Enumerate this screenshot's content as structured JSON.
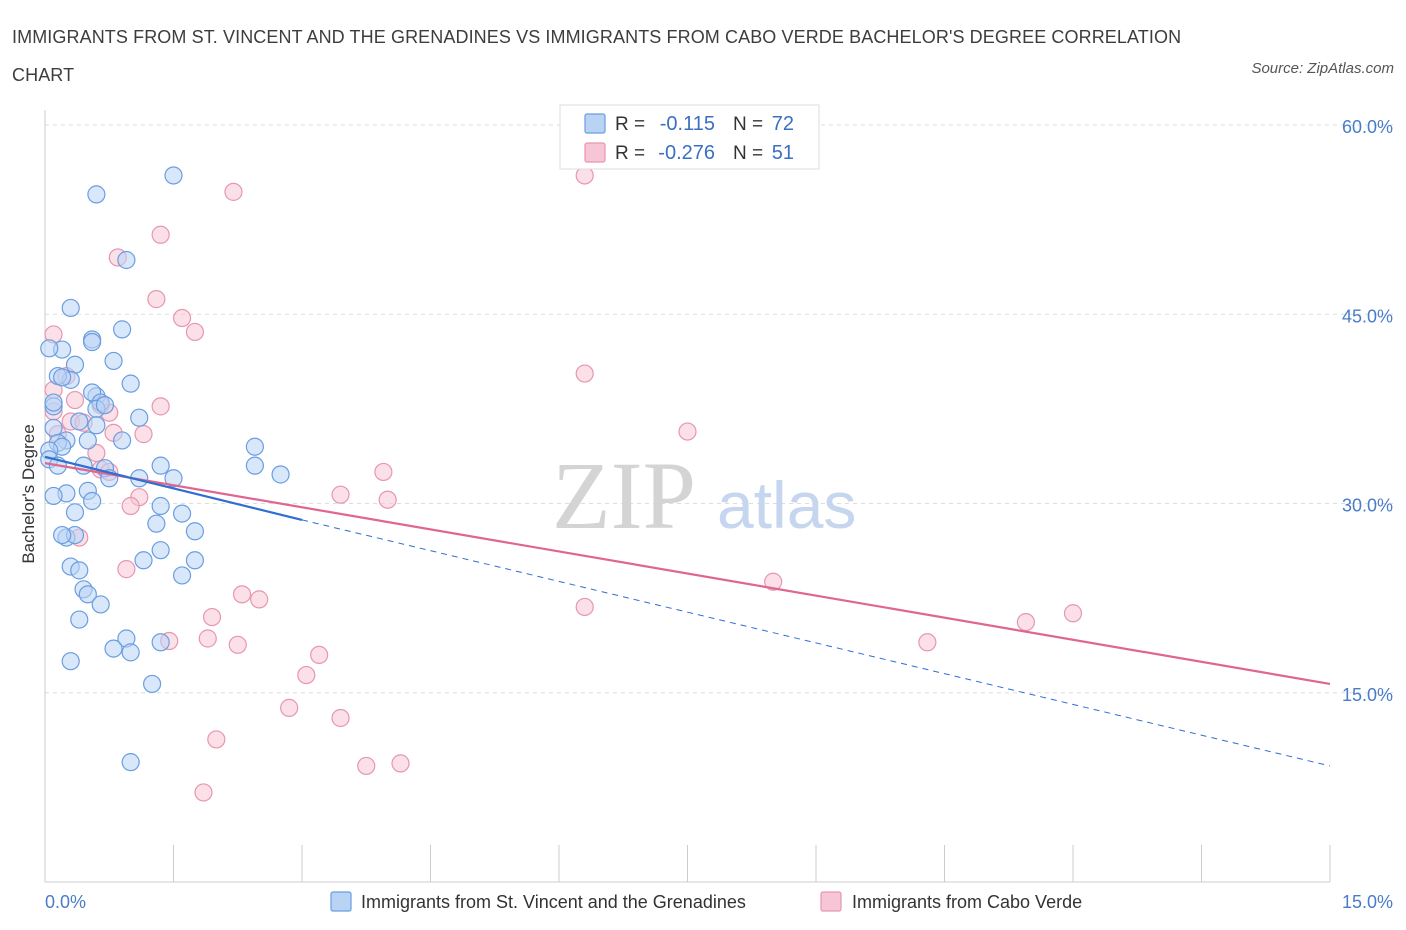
{
  "title": "IMMIGRANTS FROM ST. VINCENT AND THE GRENADINES VS IMMIGRANTS FROM CABO VERDE BACHELOR'S DEGREE CORRELATION CHART",
  "source": "Source: ZipAtlas.com",
  "watermark": {
    "part1": "ZIP",
    "part2": "atlas"
  },
  "colors": {
    "series1_fill": "#b9d3f5",
    "series1_stroke": "#6a9ee0",
    "series1_line": "#2f6fcf",
    "series2_fill": "#f7c6d6",
    "series2_stroke": "#e796b2",
    "series2_line": "#e06590",
    "tick_label": "#4a7cc9",
    "grid": "#dddddd"
  },
  "legend": {
    "r_label": "R =",
    "n_label": "N =",
    "series1": {
      "r": "-0.115",
      "n": "72"
    },
    "series2": {
      "r": "-0.276",
      "n": "51"
    }
  },
  "chart_data": {
    "type": "scatter",
    "xlabel": "",
    "ylabel": "Bachelor's Degree",
    "xlim": [
      0,
      15
    ],
    "ylim": [
      0,
      60
    ],
    "x_tick_labels": [
      "0.0%",
      "15.0%"
    ],
    "y_ticks": [
      15,
      30,
      45,
      60
    ],
    "y_tick_labels": [
      "15.0%",
      "30.0%",
      "45.0%",
      "60.0%"
    ],
    "grid": true,
    "legend_position": "top-center",
    "series": [
      {
        "name": "Immigrants from St. Vincent and the Grenadines",
        "trend": {
          "x": [
            0,
            3.0
          ],
          "y": [
            33.7,
            28.7
          ],
          "dashed_extension": {
            "x": [
              3.0,
              15.0
            ],
            "y": [
              28.7,
              9.2
            ]
          }
        },
        "points": [
          [
            0.6,
            54.5
          ],
          [
            1.5,
            56.0
          ],
          [
            0.3,
            45.5
          ],
          [
            0.55,
            43.0
          ],
          [
            0.9,
            43.8
          ],
          [
            0.55,
            42.8
          ],
          [
            0.2,
            42.2
          ],
          [
            0.05,
            42.3
          ],
          [
            0.35,
            41.0
          ],
          [
            0.8,
            41.3
          ],
          [
            1.0,
            39.5
          ],
          [
            0.3,
            39.8
          ],
          [
            0.15,
            40.1
          ],
          [
            0.6,
            38.5
          ],
          [
            0.55,
            38.8
          ],
          [
            0.65,
            38.0
          ],
          [
            0.1,
            37.7
          ],
          [
            0.6,
            37.5
          ],
          [
            1.1,
            36.8
          ],
          [
            0.1,
            36.0
          ],
          [
            0.6,
            36.2
          ],
          [
            0.25,
            35.0
          ],
          [
            0.15,
            34.8
          ],
          [
            0.2,
            34.5
          ],
          [
            0.05,
            34.2
          ],
          [
            0.05,
            33.5
          ],
          [
            0.15,
            33.0
          ],
          [
            0.45,
            33.0
          ],
          [
            0.7,
            32.8
          ],
          [
            1.35,
            33.0
          ],
          [
            0.75,
            32.0
          ],
          [
            1.1,
            32.0
          ],
          [
            1.5,
            32.0
          ],
          [
            0.25,
            30.8
          ],
          [
            0.5,
            31.0
          ],
          [
            0.1,
            30.6
          ],
          [
            0.55,
            30.2
          ],
          [
            1.35,
            29.8
          ],
          [
            0.35,
            29.3
          ],
          [
            1.6,
            29.2
          ],
          [
            1.3,
            28.4
          ],
          [
            1.75,
            27.8
          ],
          [
            0.25,
            27.3
          ],
          [
            0.35,
            27.5
          ],
          [
            0.2,
            27.5
          ],
          [
            1.35,
            26.3
          ],
          [
            1.15,
            25.5
          ],
          [
            1.75,
            25.5
          ],
          [
            0.3,
            25.0
          ],
          [
            0.4,
            24.7
          ],
          [
            1.6,
            24.3
          ],
          [
            0.45,
            23.2
          ],
          [
            0.5,
            22.8
          ],
          [
            0.65,
            22.0
          ],
          [
            0.4,
            20.8
          ],
          [
            0.95,
            19.3
          ],
          [
            1.35,
            19.0
          ],
          [
            0.8,
            18.5
          ],
          [
            1.0,
            18.2
          ],
          [
            0.3,
            17.5
          ],
          [
            1.25,
            15.7
          ],
          [
            1.0,
            9.5
          ],
          [
            2.45,
            34.5
          ],
          [
            2.45,
            33.0
          ],
          [
            2.75,
            32.3
          ],
          [
            0.95,
            49.3
          ],
          [
            0.1,
            38.0
          ],
          [
            0.4,
            36.5
          ],
          [
            0.7,
            37.8
          ],
          [
            0.2,
            40.0
          ],
          [
            0.5,
            35.0
          ],
          [
            0.9,
            35.0
          ]
        ]
      },
      {
        "name": "Immigrants from Cabo Verde",
        "trend": {
          "x": [
            0,
            15.0
          ],
          "y": [
            33.2,
            15.7
          ]
        },
        "points": [
          [
            6.3,
            56.0
          ],
          [
            2.2,
            54.7
          ],
          [
            1.35,
            51.3
          ],
          [
            0.85,
            49.5
          ],
          [
            1.3,
            46.2
          ],
          [
            1.6,
            44.7
          ],
          [
            1.75,
            43.6
          ],
          [
            0.1,
            43.4
          ],
          [
            6.3,
            40.3
          ],
          [
            0.25,
            40.1
          ],
          [
            0.1,
            39.0
          ],
          [
            0.35,
            38.2
          ],
          [
            1.35,
            37.7
          ],
          [
            0.65,
            37.8
          ],
          [
            0.75,
            37.2
          ],
          [
            0.1,
            37.3
          ],
          [
            0.3,
            36.5
          ],
          [
            0.45,
            36.4
          ],
          [
            0.8,
            35.6
          ],
          [
            1.15,
            35.5
          ],
          [
            7.5,
            35.7
          ],
          [
            0.6,
            34.0
          ],
          [
            0.65,
            32.7
          ],
          [
            0.75,
            32.5
          ],
          [
            3.95,
            32.5
          ],
          [
            3.45,
            30.7
          ],
          [
            4.0,
            30.3
          ],
          [
            1.1,
            30.5
          ],
          [
            0.4,
            27.3
          ],
          [
            0.95,
            24.8
          ],
          [
            8.5,
            23.8
          ],
          [
            2.3,
            22.8
          ],
          [
            2.5,
            22.4
          ],
          [
            6.3,
            21.8
          ],
          [
            1.95,
            21.0
          ],
          [
            12.0,
            21.3
          ],
          [
            11.45,
            20.6
          ],
          [
            10.3,
            19.0
          ],
          [
            1.9,
            19.3
          ],
          [
            1.45,
            19.1
          ],
          [
            2.25,
            18.8
          ],
          [
            3.2,
            18.0
          ],
          [
            3.05,
            16.4
          ],
          [
            2.85,
            13.8
          ],
          [
            3.45,
            13.0
          ],
          [
            2.0,
            11.3
          ],
          [
            4.15,
            9.4
          ],
          [
            3.75,
            9.2
          ],
          [
            1.85,
            7.1
          ],
          [
            1.0,
            29.8
          ],
          [
            0.15,
            35.5
          ]
        ]
      }
    ]
  },
  "bottom_legend": {
    "series1": "Immigrants from St. Vincent and the Grenadines",
    "series2": "Immigrants from Cabo Verde"
  }
}
